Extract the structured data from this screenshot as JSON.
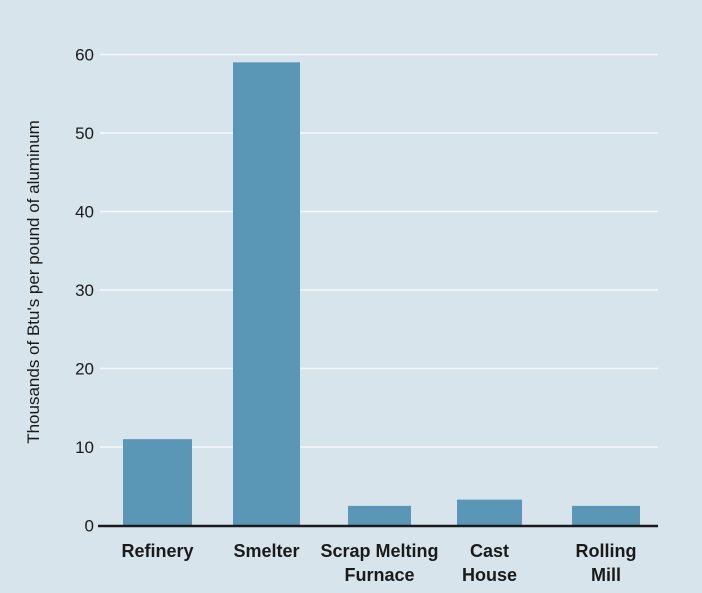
{
  "chart_data": {
    "type": "bar",
    "title": "",
    "xlabel": "",
    "ylabel": "Thousands of Btu's per pound of aluminum",
    "categories": [
      [
        "Refinery"
      ],
      [
        "Smelter"
      ],
      [
        "Scrap Melting",
        "Furnace"
      ],
      [
        "Cast",
        "House"
      ],
      [
        "Rolling",
        "Mill"
      ]
    ],
    "values": [
      11.0,
      59.0,
      2.5,
      3.3,
      2.5
    ],
    "ylim": [
      0,
      60
    ],
    "yticks": [
      0,
      10,
      20,
      30,
      40,
      50,
      60
    ],
    "grid": true,
    "bar_color": "#5a97b6",
    "background_color": "#d8e4ec"
  }
}
